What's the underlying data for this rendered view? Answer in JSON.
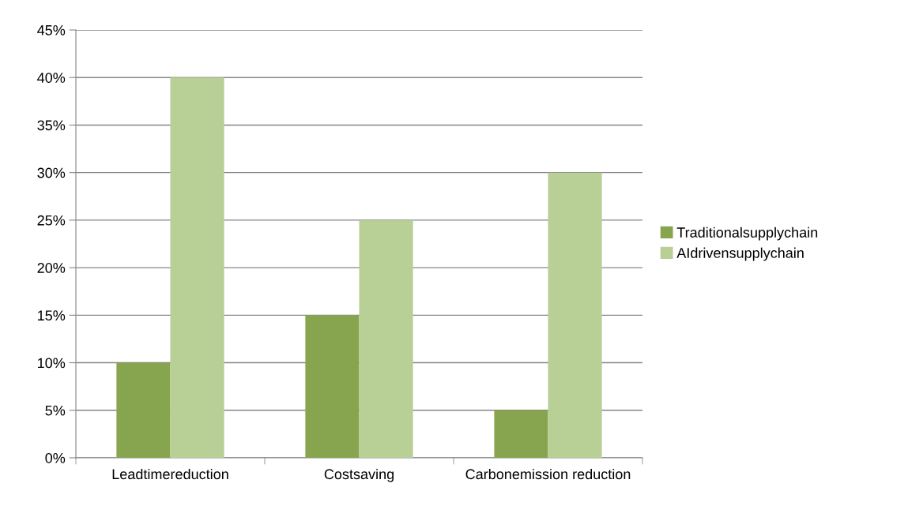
{
  "chart_data": {
    "type": "bar",
    "categories": [
      "Leadtimereduction",
      "Costsaving",
      "Carbonemission reduction"
    ],
    "series": [
      {
        "name": "Traditionalsupplychain",
        "color": "#87a54f",
        "values": [
          10,
          15,
          5
        ]
      },
      {
        "name": "AIdrivensupplychain",
        "color": "#b8cf95",
        "values": [
          40,
          25,
          30
        ]
      }
    ],
    "ylim": [
      0,
      45
    ],
    "yticks": [
      {
        "value": 0,
        "label": "0%"
      },
      {
        "value": 5,
        "label": "5%"
      },
      {
        "value": 10,
        "label": "10%"
      },
      {
        "value": 15,
        "label": "15%"
      },
      {
        "value": 20,
        "label": "20%"
      },
      {
        "value": 25,
        "label": "25%"
      },
      {
        "value": 30,
        "label": "30%"
      },
      {
        "value": 35,
        "label": "35%"
      },
      {
        "value": 40,
        "label": "40%"
      },
      {
        "value": 45,
        "label": "45%"
      }
    ],
    "grid": "y",
    "legend": "right"
  }
}
